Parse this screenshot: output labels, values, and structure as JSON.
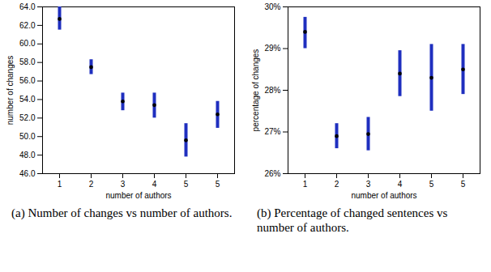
{
  "chart_data": [
    {
      "type": "errorbar",
      "caption": "(a) Number of changes vs number of authors.",
      "xlabel": "number of authors",
      "ylabel": "number of changes",
      "categories": [
        "1",
        "2",
        "3",
        "4",
        "5",
        "5"
      ],
      "values": [
        62.7,
        57.5,
        53.8,
        53.4,
        49.6,
        52.4
      ],
      "lower": [
        61.5,
        56.7,
        52.8,
        52.0,
        47.8,
        50.9
      ],
      "upper": [
        64.0,
        58.3,
        54.7,
        54.7,
        51.4,
        53.8
      ],
      "color": "#1f2fbf",
      "marker": "dot",
      "ylim": [
        46,
        64
      ],
      "yticks": [
        {
          "value": 46,
          "label": "46.0"
        },
        {
          "value": 48,
          "label": "48.0"
        },
        {
          "value": 50,
          "label": "50.0"
        },
        {
          "value": 52,
          "label": "52.0"
        },
        {
          "value": 54,
          "label": "54.0"
        },
        {
          "value": 56,
          "label": "56.0"
        },
        {
          "value": 58,
          "label": "58.0"
        },
        {
          "value": 60,
          "label": "60.0"
        },
        {
          "value": 62,
          "label": "62.0"
        },
        {
          "value": 64,
          "label": "64.0"
        }
      ]
    },
    {
      "type": "errorbar",
      "caption": "(b) Percentage of changed sentences vs number of authors.",
      "xlabel": "number of authors",
      "ylabel": "percentage of changes",
      "categories": [
        "1",
        "2",
        "3",
        "4",
        "5",
        "5"
      ],
      "values": [
        29.4,
        26.9,
        26.95,
        28.4,
        28.3,
        28.5
      ],
      "lower": [
        29.0,
        26.6,
        26.55,
        27.85,
        27.5,
        27.9
      ],
      "upper": [
        29.75,
        27.2,
        27.35,
        28.95,
        29.1,
        29.1
      ],
      "color": "#1f2fbf",
      "marker": "dot",
      "ylim": [
        26,
        30
      ],
      "yticks": [
        {
          "value": 26,
          "label": "26%"
        },
        {
          "value": 27,
          "label": "27%"
        },
        {
          "value": 28,
          "label": "28%"
        },
        {
          "value": 29,
          "label": "29%"
        },
        {
          "value": 30,
          "label": "30%"
        }
      ]
    }
  ]
}
